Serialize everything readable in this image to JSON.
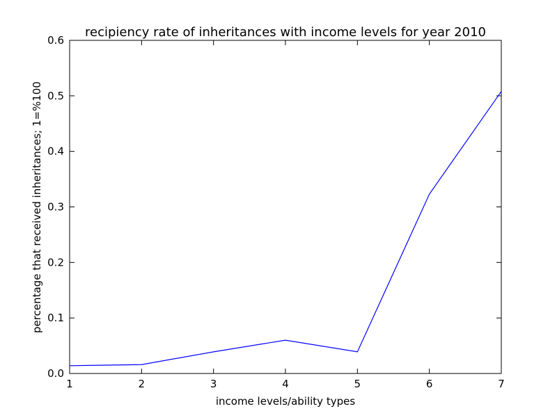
{
  "chart_data": {
    "type": "line",
    "title": "recipiency rate of inheritances with income levels for year 2010",
    "xlabel": "income levels/ability types",
    "ylabel": "percentage that received inheritances; 1=%100",
    "xlim": [
      1,
      7
    ],
    "ylim": [
      0,
      0.6
    ],
    "x_ticks": [
      1,
      2,
      3,
      4,
      5,
      6,
      7
    ],
    "x_tick_labels": [
      "1",
      "2",
      "3",
      "4",
      "5",
      "6",
      "7"
    ],
    "y_ticks": [
      0,
      0.1,
      0.2,
      0.3,
      0.4,
      0.5,
      0.6
    ],
    "y_tick_labels": [
      "0.0",
      "0.1",
      "0.2",
      "0.3",
      "0.4",
      "0.5",
      "0.6"
    ],
    "grid": false,
    "legend": "none",
    "series": [
      {
        "color": "#0000ff",
        "x": [
          1,
          2,
          3,
          4,
          5,
          6,
          7
        ],
        "y": [
          0.014,
          0.016,
          0.039,
          0.06,
          0.039,
          0.323,
          0.508
        ]
      }
    ]
  }
}
